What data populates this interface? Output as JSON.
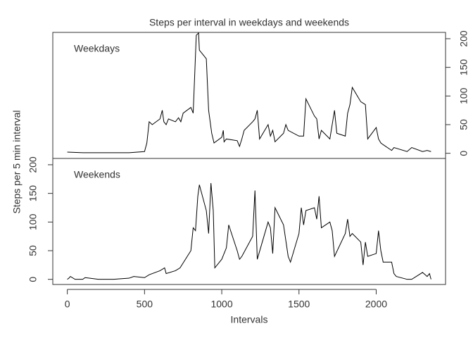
{
  "chart_data": {
    "type": "line",
    "title": "Steps per interval in weekdays and weekends",
    "x_label": "Intervals",
    "y_label": "Steps per 5 min interval",
    "xlim": [
      -94,
      2449
    ],
    "xticks": [
      0,
      500,
      1000,
      1500,
      2000
    ],
    "ylim": [
      -9,
      211
    ],
    "yticks": [
      0,
      50,
      100,
      150,
      200
    ],
    "series": [
      {
        "name": "Weekdays",
        "color": "#000000",
        "axis_side": "right",
        "x": [
          0,
          100,
          200,
          300,
          400,
          500,
          515,
          530,
          550,
          600,
          615,
          625,
          640,
          655,
          700,
          720,
          735,
          750,
          800,
          815,
          835,
          850,
          855,
          900,
          915,
          925,
          935,
          950,
          1000,
          1010,
          1015,
          1030,
          1100,
          1115,
          1130,
          1145,
          1200,
          1215,
          1230,
          1245,
          1300,
          1315,
          1330,
          1345,
          1400,
          1415,
          1430,
          1500,
          1530,
          1545,
          1600,
          1615,
          1630,
          1645,
          1700,
          1730,
          1745,
          1800,
          1815,
          1830,
          1845,
          1900,
          1930,
          1945,
          2000,
          2015,
          2030,
          2045,
          2100,
          2115,
          2200,
          2230,
          2300,
          2330,
          2355
        ],
        "values": [
          2,
          1,
          1,
          1,
          1,
          3,
          18,
          55,
          50,
          60,
          75,
          55,
          50,
          60,
          55,
          62,
          55,
          70,
          80,
          70,
          206,
          210,
          180,
          165,
          75,
          55,
          35,
          18,
          28,
          40,
          20,
          25,
          22,
          12,
          25,
          40,
          55,
          60,
          75,
          25,
          50,
          30,
          40,
          20,
          35,
          50,
          40,
          30,
          30,
          95,
          65,
          60,
          25,
          40,
          25,
          75,
          35,
          30,
          70,
          85,
          115,
          90,
          85,
          25,
          45,
          25,
          18,
          15,
          5,
          10,
          3,
          10,
          3,
          5,
          3
        ]
      },
      {
        "name": "Weekends",
        "color": "#000000",
        "axis_side": "left",
        "x": [
          0,
          10,
          20,
          50,
          100,
          115,
          200,
          300,
          400,
          430,
          500,
          530,
          600,
          630,
          640,
          700,
          730,
          800,
          815,
          830,
          845,
          855,
          900,
          915,
          930,
          945,
          955,
          1000,
          1030,
          1045,
          1100,
          1115,
          1130,
          1200,
          1215,
          1230,
          1300,
          1315,
          1330,
          1345,
          1400,
          1430,
          1445,
          1500,
          1515,
          1530,
          1545,
          1600,
          1615,
          1630,
          1645,
          1700,
          1715,
          1730,
          1800,
          1815,
          1830,
          1845,
          1900,
          1915,
          1930,
          1945,
          2000,
          2015,
          2030,
          2045,
          2100,
          2115,
          2130,
          2200,
          2230,
          2300,
          2330,
          2345,
          2355
        ],
        "values": [
          0,
          2,
          5,
          0,
          0,
          3,
          0,
          0,
          2,
          5,
          3,
          8,
          15,
          20,
          10,
          15,
          20,
          50,
          90,
          85,
          145,
          165,
          120,
          80,
          168,
          120,
          20,
          35,
          55,
          95,
          50,
          35,
          40,
          75,
          155,
          35,
          100,
          90,
          45,
          125,
          95,
          40,
          30,
          80,
          125,
          95,
          120,
          125,
          105,
          145,
          90,
          100,
          85,
          40,
          80,
          105,
          75,
          80,
          65,
          25,
          65,
          40,
          45,
          85,
          50,
          30,
          30,
          10,
          5,
          0,
          0,
          12,
          5,
          10,
          0
        ]
      }
    ]
  }
}
